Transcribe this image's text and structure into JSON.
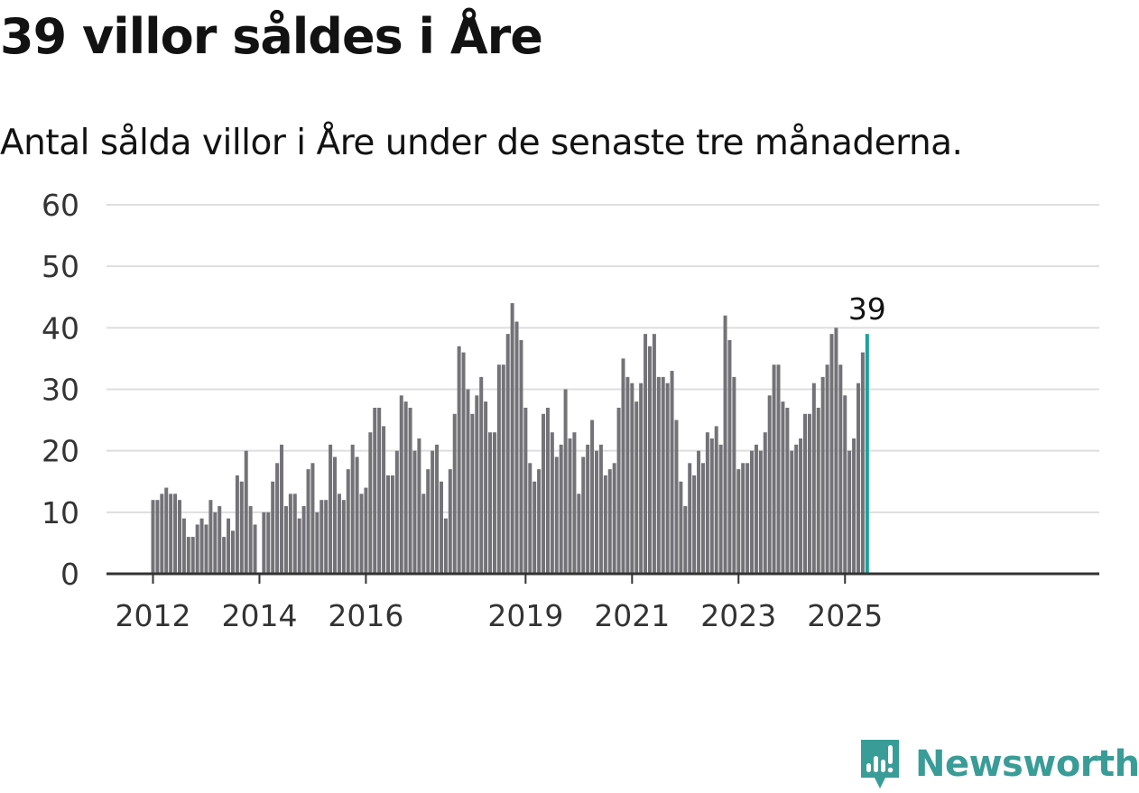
{
  "header": {
    "title": "39 villor såldes i Åre",
    "subtitle": "Antal sålda villor i Åre under de senaste tre månaderna."
  },
  "brand": {
    "name": "Newsworthy",
    "logo_icon": "bar-chart-badge-icon",
    "color": "#3a9c97"
  },
  "chart_data": {
    "type": "bar",
    "title": "",
    "xlabel": "",
    "ylabel": "",
    "ylim": [
      0,
      60
    ],
    "yticks": [
      0,
      10,
      20,
      30,
      40,
      50,
      60
    ],
    "grid": true,
    "legend": "none",
    "x_start": "2012-01",
    "x_end": "2025-06",
    "frequency": "monthly",
    "xtick_labels": [
      "2012",
      "2014",
      "2016",
      "2019",
      "2021",
      "2023",
      "2025"
    ],
    "bar_color": "#737277",
    "highlight_color": "#19a39a",
    "highlight_label": "39",
    "values": [
      12,
      12,
      13,
      14,
      13,
      13,
      12,
      9,
      6,
      6,
      8,
      9,
      8,
      12,
      10,
      11,
      6,
      9,
      7,
      16,
      15,
      20,
      11,
      8,
      null,
      10,
      10,
      15,
      18,
      21,
      11,
      13,
      13,
      9,
      11,
      17,
      18,
      10,
      12,
      12,
      21,
      19,
      13,
      12,
      17,
      21,
      19,
      13,
      14,
      23,
      27,
      27,
      24,
      16,
      16,
      20,
      29,
      28,
      27,
      20,
      22,
      13,
      17,
      20,
      21,
      15,
      9,
      17,
      26,
      37,
      36,
      30,
      26,
      29,
      32,
      28,
      23,
      23,
      34,
      34,
      39,
      44,
      41,
      38,
      27,
      18,
      15,
      17,
      26,
      27,
      23,
      19,
      21,
      30,
      22,
      23,
      13,
      19,
      21,
      25,
      20,
      21,
      16,
      17,
      18,
      27,
      35,
      32,
      31,
      28,
      31,
      39,
      37,
      39,
      32,
      32,
      31,
      33,
      25,
      15,
      11,
      18,
      16,
      20,
      18,
      23,
      22,
      24,
      21,
      42,
      38,
      32,
      17,
      18,
      18,
      20,
      21,
      20,
      23,
      29,
      34,
      34,
      28,
      27,
      20,
      21,
      22,
      26,
      26,
      31,
      27,
      32,
      34,
      39,
      40,
      34,
      29,
      20,
      22,
      31,
      36,
      39
    ]
  }
}
